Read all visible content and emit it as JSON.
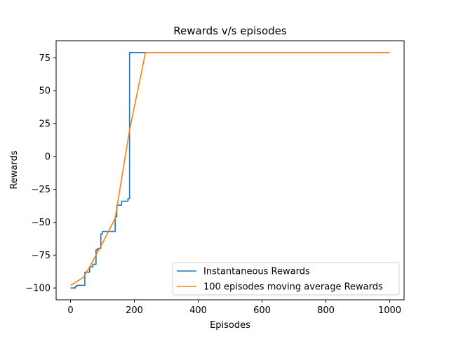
{
  "chart_data": {
    "type": "line",
    "title": "Rewards v/s episodes",
    "xlabel": "Episodes",
    "ylabel": "Rewards",
    "xlim": [
      -45,
      1045
    ],
    "ylim": [
      -109,
      88
    ],
    "xticks": [
      0,
      200,
      400,
      600,
      800,
      1000
    ],
    "yticks": [
      -100,
      -75,
      -50,
      -25,
      0,
      25,
      50,
      75
    ],
    "grid": false,
    "legend_position": "lower-right",
    "series": [
      {
        "name": "Instantaneous Rewards",
        "color": "#1f77b4",
        "x": [
          0,
          15,
          15,
          20,
          20,
          45,
          45,
          60,
          60,
          70,
          70,
          80,
          80,
          85,
          85,
          95,
          95,
          100,
          100,
          140,
          140,
          145,
          145,
          160,
          160,
          180,
          180,
          185,
          185,
          1000
        ],
        "y": [
          -100,
          -100,
          -99,
          -99,
          -98,
          -98,
          -88,
          -88,
          -84,
          -84,
          -82,
          -82,
          -71,
          -71,
          -70,
          -70,
          -59,
          -59,
          -57,
          -57,
          -46,
          -46,
          -37,
          -37,
          -34,
          -34,
          -32,
          -32,
          79,
          79
        ]
      },
      {
        "name": "100 episodes moving average Rewards",
        "color": "#ff7f0e",
        "x": [
          0,
          40,
          60,
          100,
          140,
          185,
          235,
          1000
        ],
        "y": [
          -98,
          -92,
          -84,
          -66,
          -47,
          20,
          79,
          79
        ]
      }
    ]
  }
}
